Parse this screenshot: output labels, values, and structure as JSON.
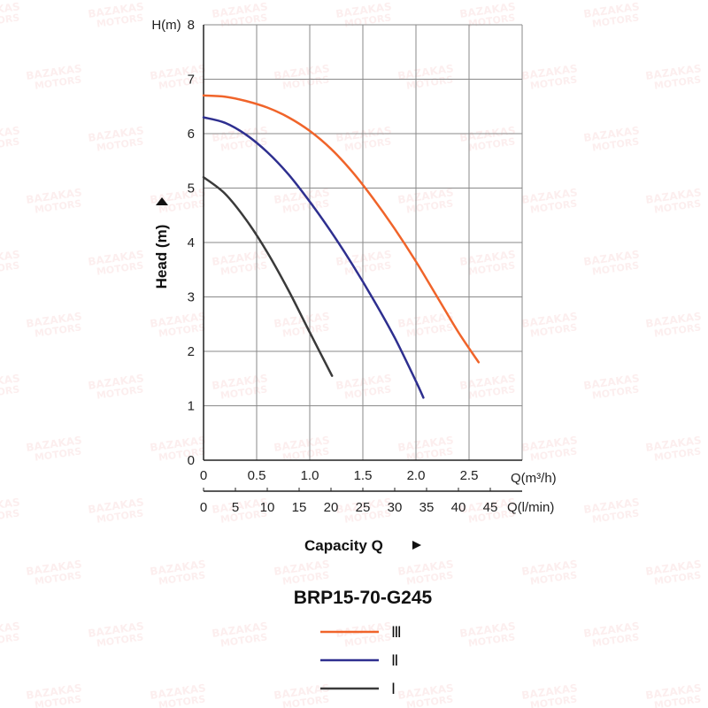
{
  "chart_data": {
    "type": "line",
    "title": "BRP15-70-G245",
    "ylabel": "Head (m)",
    "xlabel": "Capacity Q",
    "y_unit_label": "H(m)",
    "x_unit_label": "Q(m³/h)",
    "x2_unit_label": "Q(l/min)",
    "ylim": [
      0,
      8
    ],
    "xlim": [
      0,
      3
    ],
    "y_ticks": [
      "0",
      "1",
      "2",
      "3",
      "4",
      "5",
      "6",
      "7",
      "8"
    ],
    "x_ticks": [
      "0",
      "0.5",
      "1.0",
      "1.5",
      "2.0",
      "2.5"
    ],
    "x2_ticks": [
      "0",
      "5",
      "10",
      "15",
      "20",
      "25",
      "30",
      "35",
      "40",
      "45"
    ],
    "grid": true,
    "legend_position": "bottom-center",
    "series": [
      {
        "name": "Ⅲ",
        "color": "#f0642a",
        "x": [
          0,
          0.2,
          0.4,
          0.6,
          0.8,
          1.0,
          1.2,
          1.4,
          1.6,
          1.8,
          2.0,
          2.2,
          2.4,
          2.59
        ],
        "y": [
          6.7,
          6.68,
          6.6,
          6.48,
          6.3,
          6.05,
          5.72,
          5.3,
          4.8,
          4.25,
          3.65,
          3.0,
          2.35,
          1.8
        ]
      },
      {
        "name": "Ⅱ",
        "color": "#2e2f8f",
        "x": [
          0,
          0.2,
          0.4,
          0.6,
          0.8,
          1.0,
          1.2,
          1.4,
          1.6,
          1.8,
          2.0,
          2.07
        ],
        "y": [
          6.3,
          6.2,
          5.98,
          5.66,
          5.25,
          4.75,
          4.2,
          3.6,
          2.95,
          2.25,
          1.45,
          1.15
        ]
      },
      {
        "name": "Ⅰ",
        "color": "#3a3a3a",
        "x": [
          0,
          0.2,
          0.4,
          0.6,
          0.8,
          1.0,
          1.21
        ],
        "y": [
          5.2,
          4.9,
          4.42,
          3.82,
          3.12,
          2.35,
          1.55
        ]
      }
    ]
  },
  "watermark": {
    "line1": "BAZAKAS",
    "line2": "MOTORS"
  }
}
